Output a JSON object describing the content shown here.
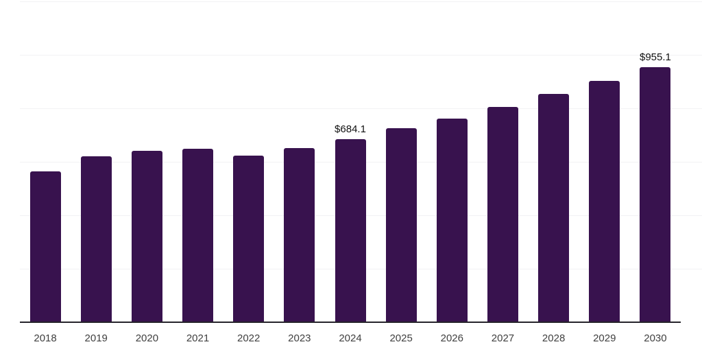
{
  "chart_data": {
    "type": "bar",
    "title": "",
    "xlabel": "",
    "ylabel": "",
    "categories": [
      "2018",
      "2019",
      "2020",
      "2021",
      "2022",
      "2023",
      "2024",
      "2025",
      "2026",
      "2027",
      "2028",
      "2029",
      "2030"
    ],
    "values": [
      562.9,
      621.0,
      642.3,
      648.2,
      622.6,
      651.8,
      684.1,
      725.1,
      762.1,
      805.6,
      852.6,
      903.1,
      955.1
    ],
    "data_labels": {
      "2024": "$684.1",
      "2030": "$955.1"
    },
    "ylim": [
      0,
      1200
    ],
    "grid_step": 200,
    "grid": "horizontal-only",
    "legend": "none",
    "y_tick_labels_visible": false,
    "colors": {
      "bar": "#38124E",
      "grid": "#f2f2f4",
      "axis_line": "#25232a",
      "tick_label": "#3f3f3f",
      "value_label": "#111111",
      "background": "#ffffff"
    }
  }
}
